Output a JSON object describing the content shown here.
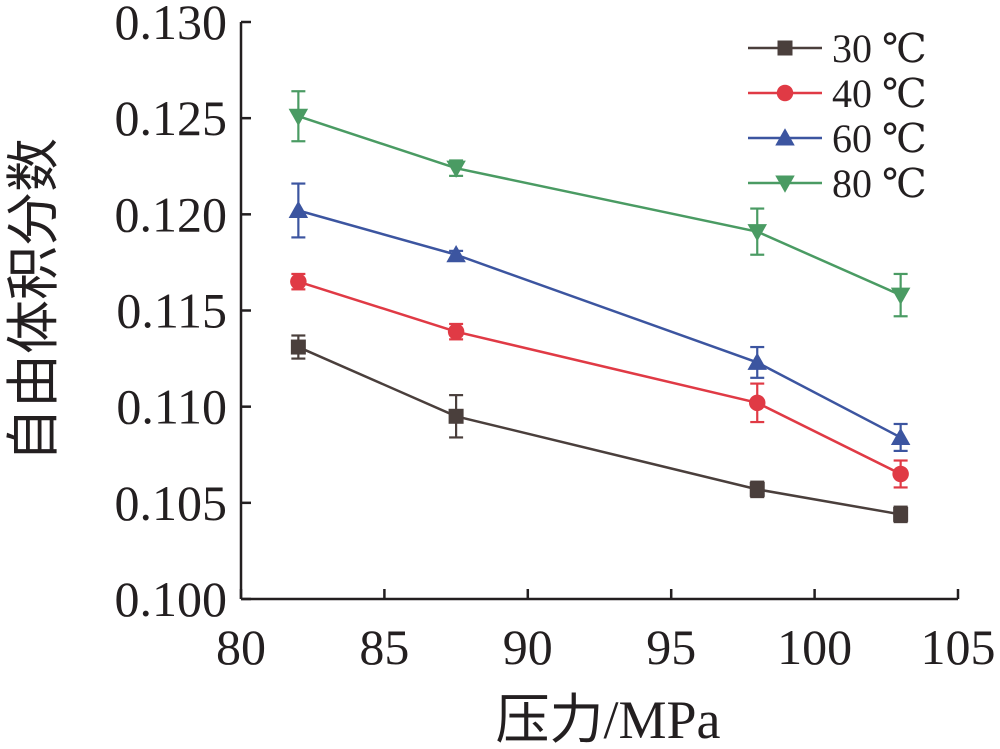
{
  "chart_data": {
    "type": "line",
    "xlabel": "压力/MPa",
    "ylabel": "自由体积分数",
    "xlim": [
      80,
      105
    ],
    "ylim": [
      0.1,
      0.13
    ],
    "xticks": [
      80,
      85,
      90,
      95,
      100,
      105
    ],
    "xtick_labels": [
      "80",
      "85",
      "90",
      "95",
      "100",
      "105"
    ],
    "yticks": [
      0.1,
      0.105,
      0.11,
      0.115,
      0.12,
      0.125,
      0.13
    ],
    "ytick_labels": [
      "0.100",
      "0.105",
      "0.110",
      "0.115",
      "0.120",
      "0.125",
      "0.130"
    ],
    "legend_position": "top-right",
    "grid": false,
    "x": [
      82,
      87.5,
      98,
      103
    ],
    "series": [
      {
        "name": "30 ℃",
        "color": "#4a3f3c",
        "marker": "square",
        "values": [
          0.1131,
          0.1095,
          0.1057,
          0.1044
        ],
        "errors": [
          0.0006,
          0.0011,
          0.0004,
          0.0004
        ]
      },
      {
        "name": "40 ℃",
        "color": "#e03a45",
        "marker": "circle",
        "values": [
          0.1165,
          0.1139,
          0.1102,
          0.1065
        ],
        "errors": [
          0.0004,
          0.0004,
          0.001,
          0.0007
        ]
      },
      {
        "name": "60 ℃",
        "color": "#3c55a0",
        "marker": "triangle-up",
        "values": [
          0.1202,
          0.1179,
          0.1123,
          0.1084
        ],
        "errors": [
          0.0014,
          0.0002,
          0.0008,
          0.0007
        ]
      },
      {
        "name": "80 ℃",
        "color": "#4a9b63",
        "marker": "triangle-down",
        "values": [
          0.1251,
          0.1224,
          0.1191,
          0.1158
        ],
        "errors": [
          0.0013,
          0.0004,
          0.0012,
          0.0011
        ]
      }
    ]
  }
}
